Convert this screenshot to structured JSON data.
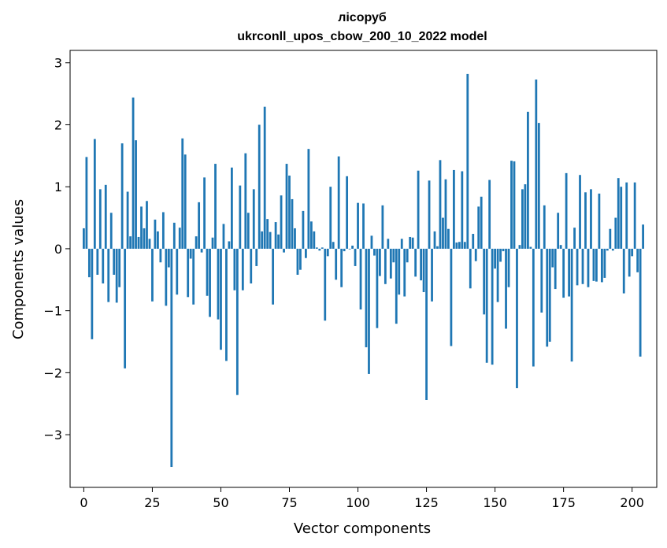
{
  "chart_data": {
    "type": "bar",
    "title": "лісоруб",
    "subtitle": "ukrconll_upos_cbow_200_10_2022 model",
    "xlabel": "Vector components",
    "ylabel": "Components values",
    "xlim": [
      -5,
      209
    ],
    "ylim": [
      -3.85,
      3.2
    ],
    "xticks": [
      0,
      25,
      50,
      75,
      100,
      125,
      150,
      175,
      200
    ],
    "yticks": [
      -3,
      -2,
      -1,
      0,
      1,
      2,
      3
    ],
    "grid": false,
    "bar_color": "#1f77b4",
    "values": [
      0.33,
      1.48,
      -0.46,
      -1.46,
      1.77,
      -0.42,
      0.96,
      -0.56,
      1.03,
      -0.86,
      0.58,
      -0.42,
      -0.87,
      -0.62,
      1.7,
      -1.93,
      0.92,
      0.2,
      2.44,
      1.75,
      0.19,
      0.68,
      0.33,
      0.77,
      0.16,
      -0.85,
      0.47,
      0.28,
      -0.22,
      0.59,
      -0.92,
      -0.3,
      -3.52,
      0.42,
      -0.74,
      0.34,
      1.78,
      1.52,
      -0.78,
      -0.16,
      -0.9,
      0.2,
      0.75,
      -0.06,
      1.15,
      -0.76,
      -1.1,
      0.18,
      1.37,
      -1.14,
      -1.63,
      0.4,
      -1.81,
      0.12,
      1.31,
      -0.67,
      -2.36,
      1.02,
      -0.67,
      1.54,
      0.58,
      -0.56,
      0.96,
      -0.28,
      2.0,
      0.28,
      2.29,
      0.48,
      0.27,
      -0.9,
      0.43,
      0.23,
      0.86,
      -0.06,
      1.37,
      1.18,
      0.8,
      0.33,
      -0.42,
      -0.34,
      0.61,
      -0.15,
      1.61,
      0.44,
      0.28,
      0.02,
      -0.03,
      0.02,
      -1.16,
      -0.12,
      1.0,
      0.11,
      -0.5,
      1.49,
      -0.62,
      -0.04,
      1.17,
      -0.01,
      0.05,
      -0.28,
      0.74,
      -0.98,
      0.73,
      -1.59,
      -2.02,
      0.21,
      -0.11,
      -1.28,
      -0.44,
      0.7,
      -0.57,
      0.16,
      -0.48,
      -0.22,
      -1.21,
      -0.74,
      0.16,
      -0.77,
      -0.22,
      0.19,
      0.18,
      -0.45,
      1.26,
      -0.51,
      -0.7,
      -2.44,
      1.1,
      -0.85,
      0.28,
      0.04,
      1.43,
      0.5,
      1.12,
      0.32,
      -1.57,
      1.27,
      0.1,
      0.11,
      1.25,
      0.11,
      2.82,
      -0.64,
      0.24,
      -0.2,
      0.68,
      0.84,
      -1.06,
      -1.84,
      1.11,
      -1.87,
      -0.32,
      -0.86,
      -0.21,
      -0.04,
      -1.29,
      -0.62,
      1.42,
      1.41,
      -2.25,
      0.06,
      0.96,
      1.04,
      2.21,
      0.03,
      -1.9,
      2.73,
      2.03,
      -1.03,
      0.7,
      -1.58,
      -1.5,
      -0.3,
      -0.65,
      0.58,
      0.06,
      -0.79,
      1.22,
      -0.77,
      -1.82,
      0.34,
      -0.59,
      1.19,
      -0.57,
      0.91,
      -0.62,
      0.96,
      -0.52,
      -0.53,
      0.89,
      -0.54,
      -0.47,
      -0.03,
      0.32,
      -0.03,
      0.5,
      1.14,
      1.0,
      -0.72,
      1.07,
      -0.45,
      -0.12,
      1.07,
      -0.38,
      -1.74,
      0.39
    ]
  }
}
